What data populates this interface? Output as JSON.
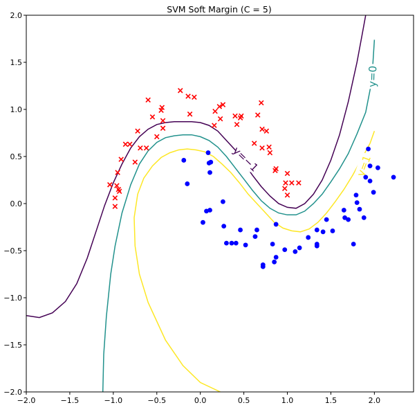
{
  "chart_data": {
    "type": "scatter",
    "title": "SVM Soft Margin (C = 5)",
    "xlabel": "",
    "ylabel": "",
    "xlim": [
      -2.0,
      2.45
    ],
    "ylim": [
      -2.0,
      2.0
    ],
    "grid": false,
    "x_ticks": [
      -2.0,
      -1.5,
      -1.0,
      -0.5,
      0.0,
      0.5,
      1.0,
      1.5,
      2.0
    ],
    "x_tick_labels": [
      "−2.0",
      "−1.5",
      "−1.0",
      "−0.5",
      "0.0",
      "0.5",
      "1.0",
      "1.5",
      "2.0"
    ],
    "y_ticks": [
      -2.0,
      -1.5,
      -1.0,
      -0.5,
      0.0,
      0.5,
      1.0,
      1.5,
      2.0
    ],
    "y_tick_labels": [
      "−2.0",
      "−1.5",
      "−1.0",
      "−0.5",
      "0.0",
      "0.5",
      "1.0",
      "1.5",
      "2.0"
    ],
    "colors": {
      "class_x": "#ff0000",
      "class_o": "#0000ff",
      "contour_neg1": "#440154",
      "contour_0": "#21918c",
      "contour_pos1": "#fde725"
    },
    "class_x_points": [
      [
        -1.04,
        0.2
      ],
      [
        -0.98,
        -0.03
      ],
      [
        -0.98,
        0.06
      ],
      [
        -0.96,
        0.19
      ],
      [
        -0.95,
        0.33
      ],
      [
        -0.94,
        0.15
      ],
      [
        -0.93,
        0.13
      ],
      [
        -0.91,
        0.47
      ],
      [
        -0.86,
        0.63
      ],
      [
        -0.81,
        0.63
      ],
      [
        -0.75,
        0.44
      ],
      [
        -0.72,
        0.77
      ],
      [
        -0.69,
        0.59
      ],
      [
        -0.62,
        0.59
      ],
      [
        -0.6,
        1.1
      ],
      [
        -0.55,
        0.92
      ],
      [
        -0.5,
        0.71
      ],
      [
        -0.45,
        0.99
      ],
      [
        -0.44,
        1.02
      ],
      [
        -0.43,
        0.88
      ],
      [
        -0.43,
        0.8
      ],
      [
        -0.23,
        1.2
      ],
      [
        -0.14,
        1.14
      ],
      [
        -0.12,
        0.95
      ],
      [
        -0.07,
        1.13
      ],
      [
        0.16,
        0.83
      ],
      [
        0.17,
        0.98
      ],
      [
        0.22,
        1.03
      ],
      [
        0.23,
        0.9
      ],
      [
        0.26,
        1.05
      ],
      [
        0.4,
        0.93
      ],
      [
        0.42,
        0.84
      ],
      [
        0.46,
        0.91
      ],
      [
        0.47,
        0.93
      ],
      [
        0.62,
        0.64
      ],
      [
        0.66,
        0.94
      ],
      [
        0.7,
        1.07
      ],
      [
        0.71,
        0.79
      ],
      [
        0.71,
        0.59
      ],
      [
        0.76,
        0.77
      ],
      [
        0.79,
        0.6
      ],
      [
        0.8,
        0.54
      ],
      [
        0.86,
        0.35
      ],
      [
        0.87,
        0.37
      ],
      [
        0.97,
        0.16
      ],
      [
        0.98,
        0.22
      ],
      [
        1.0,
        0.32
      ],
      [
        1.0,
        0.09
      ],
      [
        1.05,
        0.22
      ],
      [
        1.13,
        0.22
      ]
    ],
    "class_o_points": [
      [
        -0.19,
        0.46
      ],
      [
        -0.15,
        0.21
      ],
      [
        0.03,
        -0.2
      ],
      [
        0.07,
        -0.08
      ],
      [
        0.09,
        0.54
      ],
      [
        0.1,
        0.43
      ],
      [
        0.11,
        0.33
      ],
      [
        0.11,
        -0.07
      ],
      [
        0.12,
        0.44
      ],
      [
        0.26,
        0.02
      ],
      [
        0.27,
        -0.24
      ],
      [
        0.3,
        -0.42
      ],
      [
        0.36,
        -0.42
      ],
      [
        0.41,
        -0.42
      ],
      [
        0.46,
        -0.28
      ],
      [
        0.52,
        -0.44
      ],
      [
        0.63,
        -0.35
      ],
      [
        0.65,
        -0.28
      ],
      [
        0.72,
        -0.65
      ],
      [
        0.72,
        -0.67
      ],
      [
        0.83,
        -0.43
      ],
      [
        0.85,
        -0.62
      ],
      [
        0.87,
        -0.22
      ],
      [
        0.87,
        -0.57
      ],
      [
        0.97,
        -0.49
      ],
      [
        1.09,
        -0.51
      ],
      [
        1.14,
        -0.47
      ],
      [
        1.24,
        -0.36
      ],
      [
        1.34,
        -0.28
      ],
      [
        1.34,
        -0.43
      ],
      [
        1.34,
        -0.45
      ],
      [
        1.41,
        -0.3
      ],
      [
        1.45,
        -0.17
      ],
      [
        1.52,
        -0.29
      ],
      [
        1.65,
        -0.07
      ],
      [
        1.66,
        -0.15
      ],
      [
        1.7,
        -0.17
      ],
      [
        1.76,
        -0.43
      ],
      [
        1.79,
        0.09
      ],
      [
        1.8,
        0.01
      ],
      [
        1.83,
        -0.06
      ],
      [
        1.88,
        -0.15
      ],
      [
        1.9,
        0.28
      ],
      [
        1.93,
        0.58
      ],
      [
        1.95,
        0.24
      ],
      [
        1.95,
        0.4
      ],
      [
        1.99,
        0.12
      ],
      [
        2.04,
        0.38
      ],
      [
        2.22,
        0.28
      ]
    ],
    "contours": [
      {
        "level": "-1",
        "label": "y=−1",
        "points": [
          [
            -2.0,
            -1.19
          ],
          [
            -1.85,
            -1.21
          ],
          [
            -1.7,
            -1.16
          ],
          [
            -1.55,
            -1.04
          ],
          [
            -1.42,
            -0.85
          ],
          [
            -1.3,
            -0.58
          ],
          [
            -1.2,
            -0.3
          ],
          [
            -1.1,
            -0.02
          ],
          [
            -1.0,
            0.22
          ],
          [
            -0.9,
            0.42
          ],
          [
            -0.8,
            0.59
          ],
          [
            -0.7,
            0.71
          ],
          [
            -0.6,
            0.79
          ],
          [
            -0.5,
            0.84
          ],
          [
            -0.4,
            0.86
          ],
          [
            -0.3,
            0.87
          ],
          [
            -0.2,
            0.87
          ],
          [
            -0.1,
            0.87
          ],
          [
            0.0,
            0.86
          ],
          [
            0.1,
            0.83
          ],
          [
            0.2,
            0.77
          ],
          [
            0.3,
            0.67
          ],
          [
            0.4,
            0.57
          ],
          [
            0.5,
            0.43
          ],
          [
            0.6,
            0.3
          ],
          [
            0.7,
            0.18
          ],
          [
            0.8,
            0.08
          ],
          [
            0.9,
            0.0
          ],
          [
            1.0,
            -0.04
          ],
          [
            1.1,
            -0.05
          ],
          [
            1.2,
            0.0
          ],
          [
            1.3,
            0.1
          ],
          [
            1.4,
            0.25
          ],
          [
            1.5,
            0.46
          ],
          [
            1.6,
            0.73
          ],
          [
            1.7,
            1.08
          ],
          [
            1.8,
            1.5
          ],
          [
            1.86,
            1.8
          ],
          [
            1.9,
            2.0
          ]
        ]
      },
      {
        "level": "0",
        "label": "y=0",
        "points": [
          [
            -1.12,
            -2.0
          ],
          [
            -1.11,
            -1.6
          ],
          [
            -1.08,
            -1.2
          ],
          [
            -1.03,
            -0.75
          ],
          [
            -0.98,
            -0.45
          ],
          [
            -0.9,
            -0.1
          ],
          [
            -0.8,
            0.2
          ],
          [
            -0.7,
            0.42
          ],
          [
            -0.6,
            0.56
          ],
          [
            -0.5,
            0.65
          ],
          [
            -0.4,
            0.7
          ],
          [
            -0.3,
            0.72
          ],
          [
            -0.2,
            0.73
          ],
          [
            -0.1,
            0.73
          ],
          [
            0.0,
            0.71
          ],
          [
            0.1,
            0.67
          ],
          [
            0.2,
            0.6
          ],
          [
            0.3,
            0.5
          ],
          [
            0.4,
            0.38
          ],
          [
            0.5,
            0.26
          ],
          [
            0.6,
            0.14
          ],
          [
            0.7,
            0.03
          ],
          [
            0.8,
            -0.05
          ],
          [
            0.9,
            -0.1
          ],
          [
            1.0,
            -0.12
          ],
          [
            1.1,
            -0.12
          ],
          [
            1.2,
            -0.08
          ],
          [
            1.3,
            0.0
          ],
          [
            1.4,
            0.1
          ],
          [
            1.5,
            0.23
          ],
          [
            1.6,
            0.37
          ],
          [
            1.7,
            0.53
          ],
          [
            1.8,
            0.74
          ],
          [
            1.9,
            0.97
          ],
          [
            1.97,
            1.3
          ],
          [
            2.0,
            1.74
          ]
        ]
      },
      {
        "level": "1",
        "label": "y=1",
        "points": [
          [
            0.23,
            -2.0
          ],
          [
            0.0,
            -1.9
          ],
          [
            -0.2,
            -1.72
          ],
          [
            -0.4,
            -1.45
          ],
          [
            -0.6,
            -1.05
          ],
          [
            -0.7,
            -0.75
          ],
          [
            -0.75,
            -0.45
          ],
          [
            -0.76,
            -0.15
          ],
          [
            -0.72,
            0.1
          ],
          [
            -0.65,
            0.27
          ],
          [
            -0.55,
            0.4
          ],
          [
            -0.45,
            0.49
          ],
          [
            -0.35,
            0.54
          ],
          [
            -0.25,
            0.57
          ],
          [
            -0.15,
            0.58
          ],
          [
            -0.05,
            0.57
          ],
          [
            0.05,
            0.55
          ],
          [
            0.15,
            0.5
          ],
          [
            0.25,
            0.42
          ],
          [
            0.35,
            0.33
          ],
          [
            0.45,
            0.22
          ],
          [
            0.55,
            0.1
          ],
          [
            0.65,
            0.0
          ],
          [
            0.75,
            -0.1
          ],
          [
            0.85,
            -0.2
          ],
          [
            0.95,
            -0.26
          ],
          [
            1.05,
            -0.29
          ],
          [
            1.15,
            -0.3
          ],
          [
            1.25,
            -0.27
          ],
          [
            1.35,
            -0.2
          ],
          [
            1.45,
            -0.1
          ],
          [
            1.55,
            0.02
          ],
          [
            1.65,
            0.15
          ],
          [
            1.75,
            0.3
          ],
          [
            1.85,
            0.47
          ],
          [
            1.95,
            0.64
          ],
          [
            2.0,
            0.77
          ]
        ]
      }
    ]
  }
}
